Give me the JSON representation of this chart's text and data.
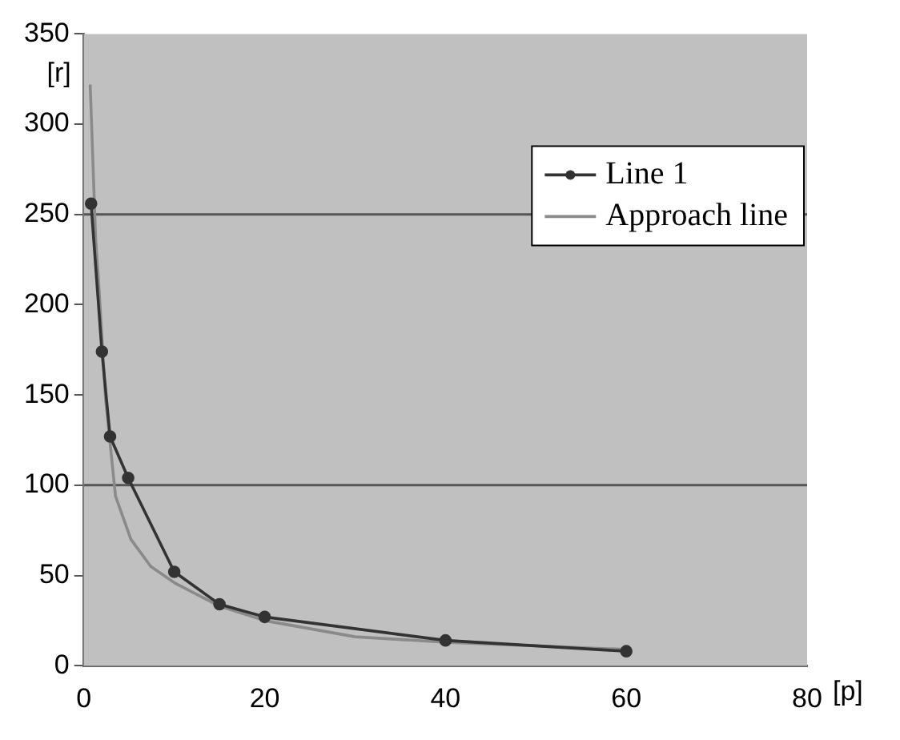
{
  "chart_data": {
    "type": "line",
    "xlabel": "[p]",
    "ylabel": "[r]",
    "xlim": [
      0,
      80
    ],
    "xticks": [
      0,
      20,
      40,
      60,
      80
    ],
    "ylim": [
      0,
      350
    ],
    "yticks": [
      0,
      50,
      100,
      150,
      200,
      250,
      300,
      350
    ],
    "legend": "right",
    "ref_lines": [
      {
        "axis": "y",
        "value": 100,
        "color": "#555555"
      },
      {
        "axis": "y",
        "value": 250,
        "color": "#555555"
      }
    ],
    "series": [
      {
        "name": "Line 1",
        "color": "#333333",
        "marker": "circle",
        "x": [
          0.8,
          2,
          2.9,
          4.9,
          10,
          15,
          20,
          40,
          60
        ],
        "values": [
          256,
          174,
          127,
          104,
          52,
          34,
          27,
          14,
          8
        ]
      },
      {
        "name": "Approach line",
        "color": "#8a8a8a",
        "marker": "none",
        "x": [
          0.7,
          1.3,
          1.7,
          2.4,
          3.5,
          5.2,
          7.4,
          10,
          15,
          20,
          30,
          40,
          60
        ],
        "values": [
          322,
          237,
          207,
          148,
          94,
          70,
          55,
          46,
          33,
          25,
          16,
          13,
          9
        ]
      }
    ]
  }
}
